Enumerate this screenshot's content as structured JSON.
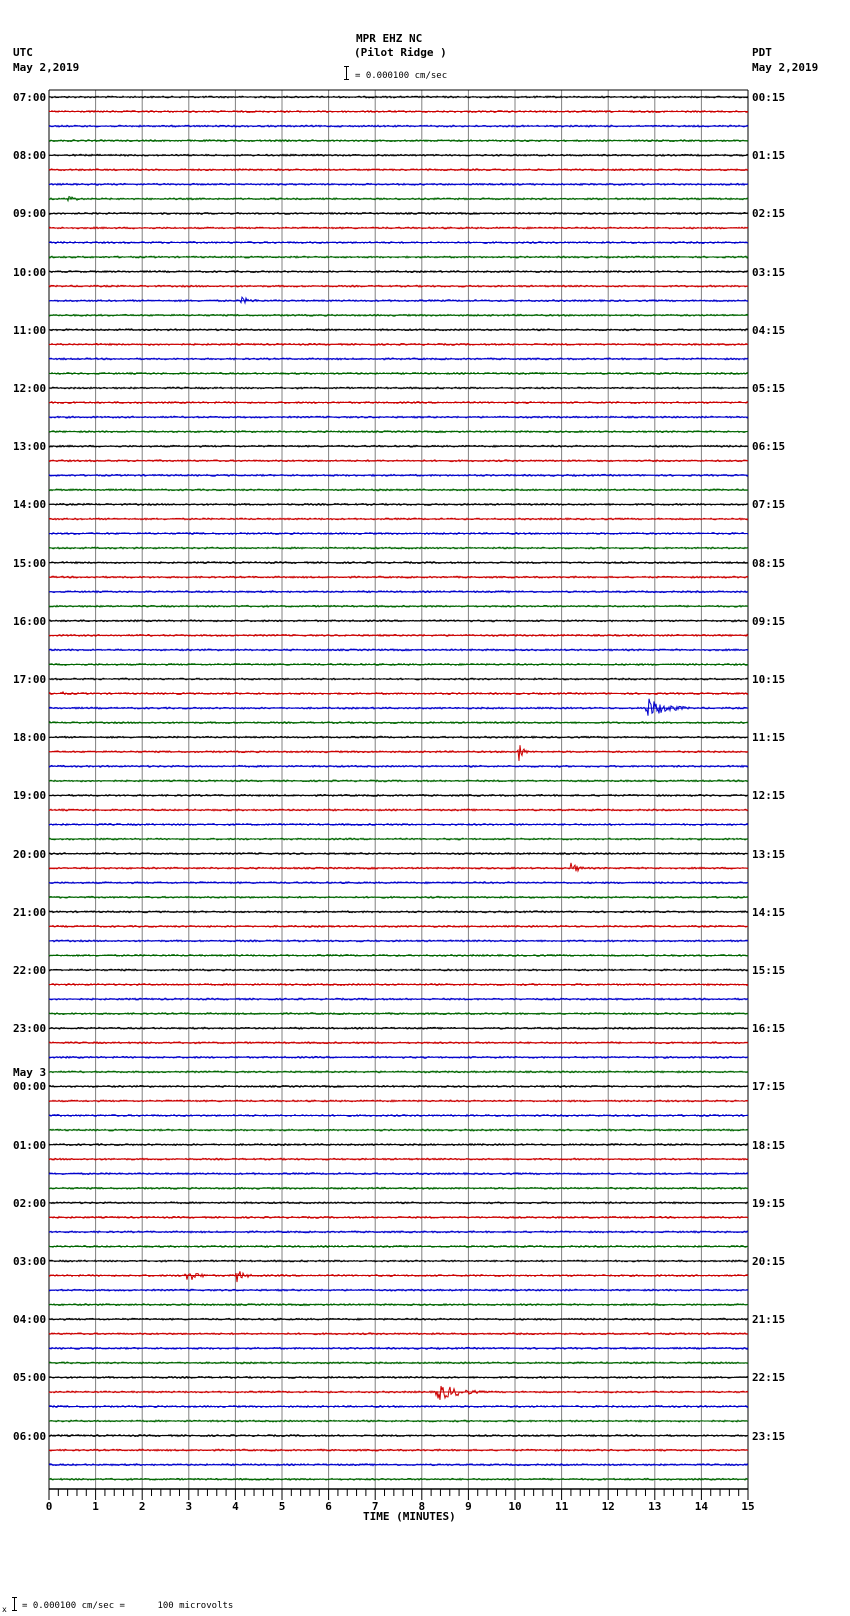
{
  "header": {
    "station": "MPR EHZ NC",
    "location": "(Pilot Ridge )",
    "left_tz": "UTC",
    "left_date": "May 2,2019",
    "right_tz": "PDT",
    "right_date": "May 2,2019",
    "scale_text": "= 0.000100 cm/sec"
  },
  "footer": {
    "scale_prefix": "x",
    "scale_text": "= 0.000100 cm/sec =      100 microvolts"
  },
  "colors": {
    "trace_cycle": [
      "#000000",
      "#cc0000",
      "#0000cc",
      "#006600"
    ],
    "grid": "#808080"
  },
  "chart_data": {
    "type": "line",
    "title": "MPR EHZ NC (Pilot Ridge )",
    "xlabel": "TIME (MINUTES)",
    "ylabel": "",
    "xlim": [
      0,
      15
    ],
    "x_ticks": [
      "0",
      "1",
      "2",
      "3",
      "4",
      "5",
      "6",
      "7",
      "8",
      "9",
      "10",
      "11",
      "12",
      "13",
      "14",
      "15"
    ],
    "traces_per_hour": 4,
    "minutes_per_trace": 15,
    "left_labels": [
      {
        "row": 0,
        "text": "07:00"
      },
      {
        "row": 4,
        "text": "08:00"
      },
      {
        "row": 8,
        "text": "09:00"
      },
      {
        "row": 12,
        "text": "10:00"
      },
      {
        "row": 16,
        "text": "11:00"
      },
      {
        "row": 20,
        "text": "12:00"
      },
      {
        "row": 24,
        "text": "13:00"
      },
      {
        "row": 28,
        "text": "14:00"
      },
      {
        "row": 32,
        "text": "15:00"
      },
      {
        "row": 36,
        "text": "16:00"
      },
      {
        "row": 40,
        "text": "17:00"
      },
      {
        "row": 44,
        "text": "18:00"
      },
      {
        "row": 48,
        "text": "19:00"
      },
      {
        "row": 52,
        "text": "20:00"
      },
      {
        "row": 56,
        "text": "21:00"
      },
      {
        "row": 60,
        "text": "22:00"
      },
      {
        "row": 64,
        "text": "23:00"
      },
      {
        "row": 68,
        "text": "00:00",
        "date": "May 3"
      },
      {
        "row": 72,
        "text": "01:00"
      },
      {
        "row": 76,
        "text": "02:00"
      },
      {
        "row": 80,
        "text": "03:00"
      },
      {
        "row": 84,
        "text": "04:00"
      },
      {
        "row": 88,
        "text": "05:00"
      },
      {
        "row": 92,
        "text": "06:00"
      }
    ],
    "right_labels": [
      "00:15",
      "01:15",
      "02:15",
      "03:15",
      "04:15",
      "05:15",
      "06:15",
      "07:15",
      "08:15",
      "09:15",
      "10:15",
      "11:15",
      "12:15",
      "13:15",
      "14:15",
      "15:15",
      "16:15",
      "17:15",
      "18:15",
      "19:15",
      "20:15",
      "21:15",
      "22:15",
      "23:15"
    ],
    "trace_count": 96,
    "events": [
      {
        "row": 7,
        "start_min": 0.4,
        "end_min": 1.0,
        "amp": 4
      },
      {
        "row": 14,
        "start_min": 4.1,
        "end_min": 5.0,
        "amp": 4
      },
      {
        "row": 41,
        "start_min": 0.25,
        "end_min": 0.6,
        "amp": 3
      },
      {
        "row": 42,
        "start_min": 12.8,
        "end_min": 14.0,
        "amp": 12,
        "spike": 10
      },
      {
        "row": 45,
        "start_min": 10.05,
        "end_min": 10.3,
        "amp": 18,
        "spike": 26
      },
      {
        "row": 53,
        "start_min": 11.2,
        "end_min": 11.8,
        "amp": 6
      },
      {
        "row": 81,
        "start_min": 2.9,
        "end_min": 3.7,
        "amp": 8
      },
      {
        "row": 81,
        "start_min": 4.0,
        "end_min": 4.5,
        "amp": 9
      },
      {
        "row": 89,
        "start_min": 8.3,
        "end_min": 9.7,
        "amp": 10
      }
    ]
  }
}
